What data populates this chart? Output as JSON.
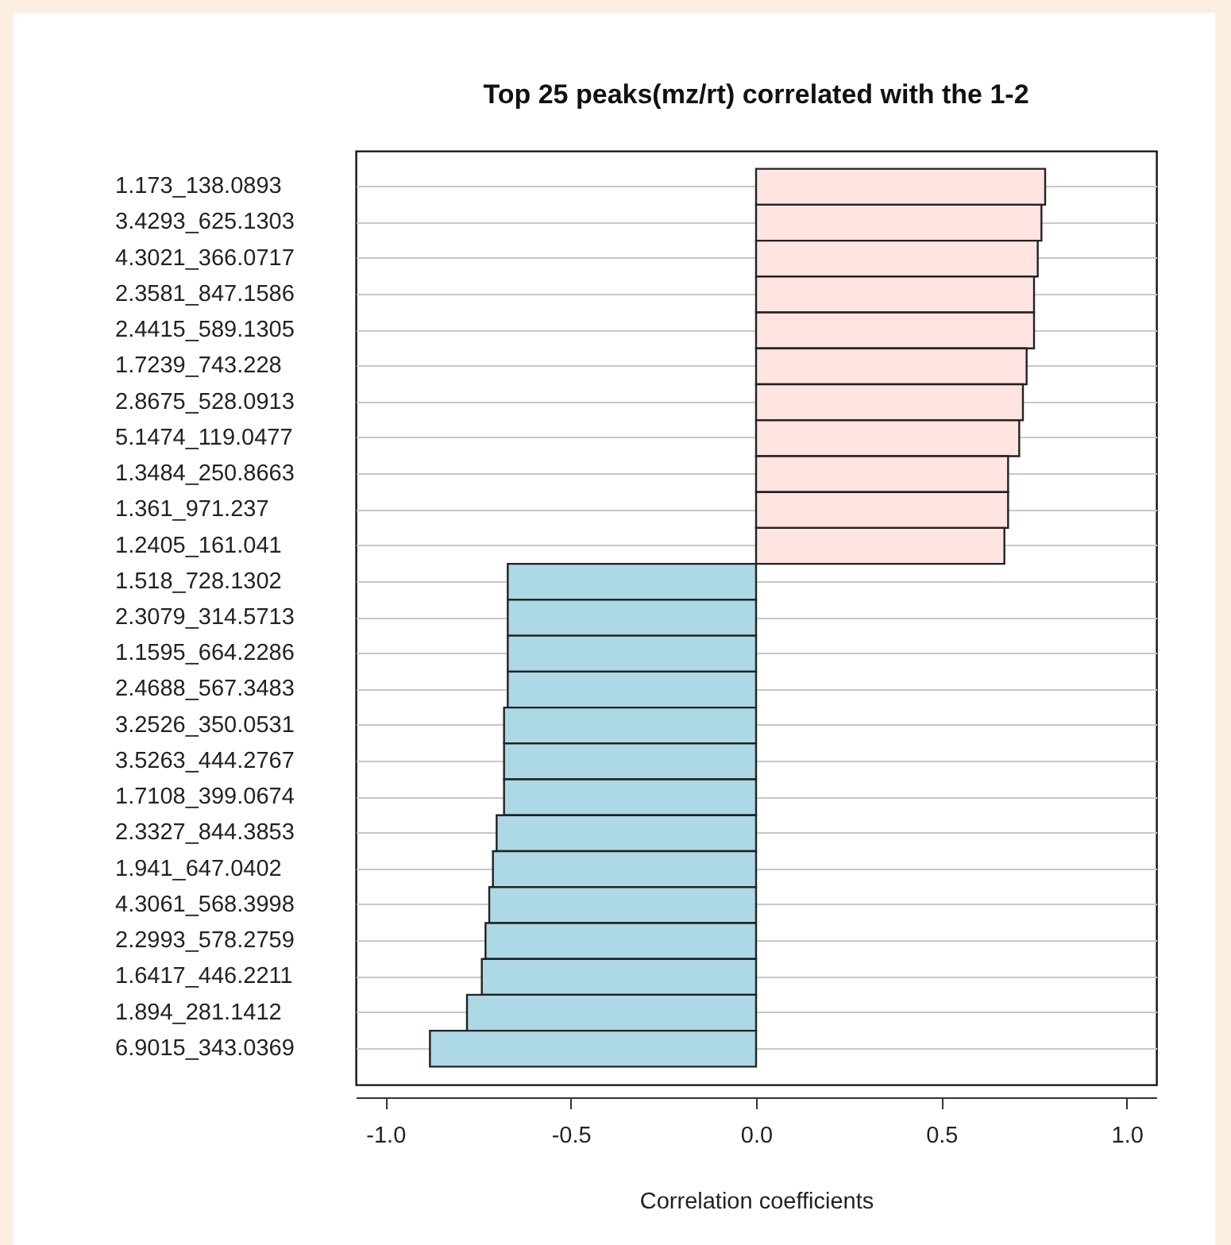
{
  "chart_data": {
    "type": "bar",
    "orientation": "horizontal",
    "title": "Top 25 peaks(mz/rt) correlated with the 1-2",
    "xlabel": "Correlation coefficients",
    "categories": [
      "1.173_138.0893",
      "3.4293_625.1303",
      "4.3021_366.0717",
      "2.3581_847.1586",
      "2.4415_589.1305",
      "1.7239_743.228",
      "2.8675_528.0913",
      "5.1474_119.0477",
      "1.3484_250.8663",
      "1.361_971.237",
      "1.2405_161.041",
      "1.518_728.1302",
      "2.3079_314.5713",
      "1.1595_664.2286",
      "2.4688_567.3483",
      "3.2526_350.0531",
      "3.5263_444.2767",
      "1.7108_399.0674",
      "2.3327_844.3853",
      "1.941_647.0402",
      "4.3061_568.3998",
      "2.2993_578.2759",
      "1.6417_446.2211",
      "1.894_281.1412",
      "6.9015_343.0369"
    ],
    "values": [
      0.78,
      0.77,
      0.76,
      0.75,
      0.75,
      0.73,
      0.72,
      0.71,
      0.68,
      0.68,
      0.67,
      -0.67,
      -0.67,
      -0.67,
      -0.67,
      -0.68,
      -0.68,
      -0.68,
      -0.7,
      -0.71,
      -0.72,
      -0.73,
      -0.74,
      -0.78,
      -0.88
    ],
    "colors": [
      "#ffe4e1",
      "#ffe4e1",
      "#ffe4e1",
      "#ffe4e1",
      "#ffe4e1",
      "#ffe4e1",
      "#ffe4e1",
      "#ffe4e1",
      "#ffe4e1",
      "#ffe4e1",
      "#ffe4e1",
      "#add8e6",
      "#add8e6",
      "#add8e6",
      "#add8e6",
      "#add8e6",
      "#add8e6",
      "#add8e6",
      "#add8e6",
      "#add8e6",
      "#add8e6",
      "#add8e6",
      "#add8e6",
      "#add8e6",
      "#add8e6"
    ],
    "xlim": [
      -1.08,
      1.08
    ],
    "xticks": [
      {
        "value": -1,
        "label": "-1.0"
      },
      {
        "value": -0.5,
        "label": "-0.5"
      },
      {
        "value": 0,
        "label": "0.0"
      },
      {
        "value": 0.5,
        "label": "0.5"
      },
      {
        "value": 1,
        "label": "1.0"
      }
    ],
    "grid": "y"
  }
}
